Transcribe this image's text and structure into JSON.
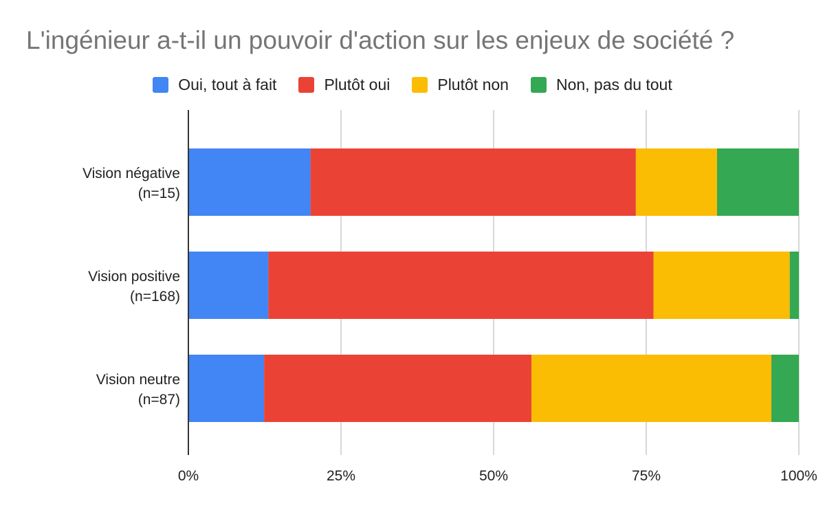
{
  "chart_data": {
    "type": "bar",
    "orientation": "horizontal",
    "stacked": "percent",
    "title": "L'ingénieur a-t-il un pouvoir d'action sur les enjeux de société ?",
    "categories": [
      [
        "Vision négative",
        "(n=15)"
      ],
      [
        "Vision positive",
        "(n=168)"
      ],
      [
        "Vision neutre",
        "(n=87)"
      ]
    ],
    "series": [
      {
        "name": "Oui, tout à fait",
        "color": "#4285f4",
        "values": [
          20.0,
          13.1,
          12.4
        ]
      },
      {
        "name": "Plutôt oui",
        "color": "#ea4335",
        "values": [
          53.3,
          63.1,
          43.8
        ]
      },
      {
        "name": "Plutôt non",
        "color": "#fbbc04",
        "values": [
          13.3,
          22.3,
          39.3
        ]
      },
      {
        "name": "Non, pas du tout",
        "color": "#34a853",
        "values": [
          13.4,
          1.5,
          4.5
        ]
      }
    ],
    "xlim": [
      0,
      100
    ],
    "x_ticks": [
      "0%",
      "25%",
      "50%",
      "75%",
      "100%"
    ],
    "grid": true,
    "legend_position": "top"
  }
}
